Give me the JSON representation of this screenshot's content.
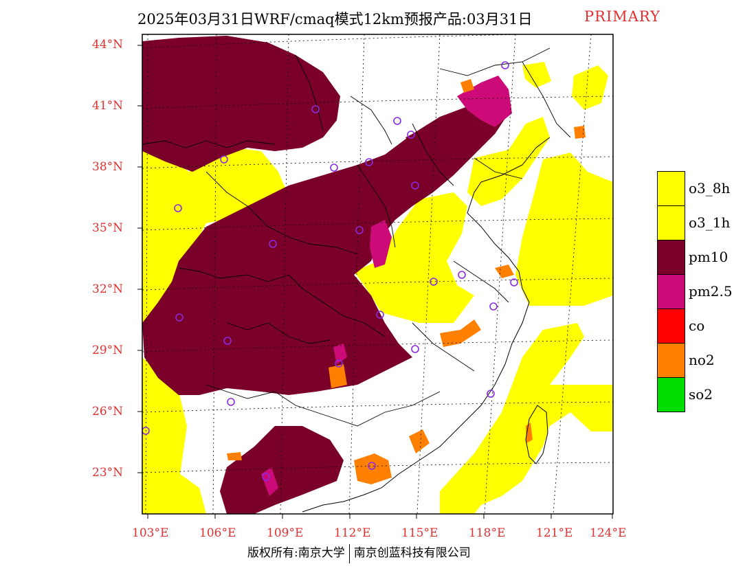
{
  "title": "2025年03月31日WRF/cmaq模式12km预报产品:03月31日",
  "title_tag": "PRIMARY",
  "lat_labels": [
    "44°N",
    "41°N",
    "38°N",
    "35°N",
    "32°N",
    "29°N",
    "26°N",
    "23°N"
  ],
  "lon_labels": [
    "103°E",
    "106°E",
    "109°E",
    "112°E",
    "115°E",
    "118°E",
    "121°E",
    "124°E"
  ],
  "legend": [
    {
      "label": "o3_8h",
      "color": "#ffff00"
    },
    {
      "label": "o3_1h",
      "color": "#ffff00"
    },
    {
      "label": "pm10",
      "color": "#7b0029"
    },
    {
      "label": "pm2.5",
      "color": "#cc0a78"
    },
    {
      "label": "co",
      "color": "#ff0000"
    },
    {
      "label": "no2",
      "color": "#ff7f00"
    },
    {
      "label": "so2",
      "color": "#00dd00"
    }
  ],
  "footer": {
    "left": "版权所有:南京大学",
    "right": "南京创蓝科技有限公司"
  },
  "colors": {
    "frame_labels": "#e03030",
    "pm10": "#7b0029",
    "pm25": "#cc0a78",
    "o3": "#ffff00",
    "no2": "#ff7f00",
    "station": "#8a2be2"
  }
}
